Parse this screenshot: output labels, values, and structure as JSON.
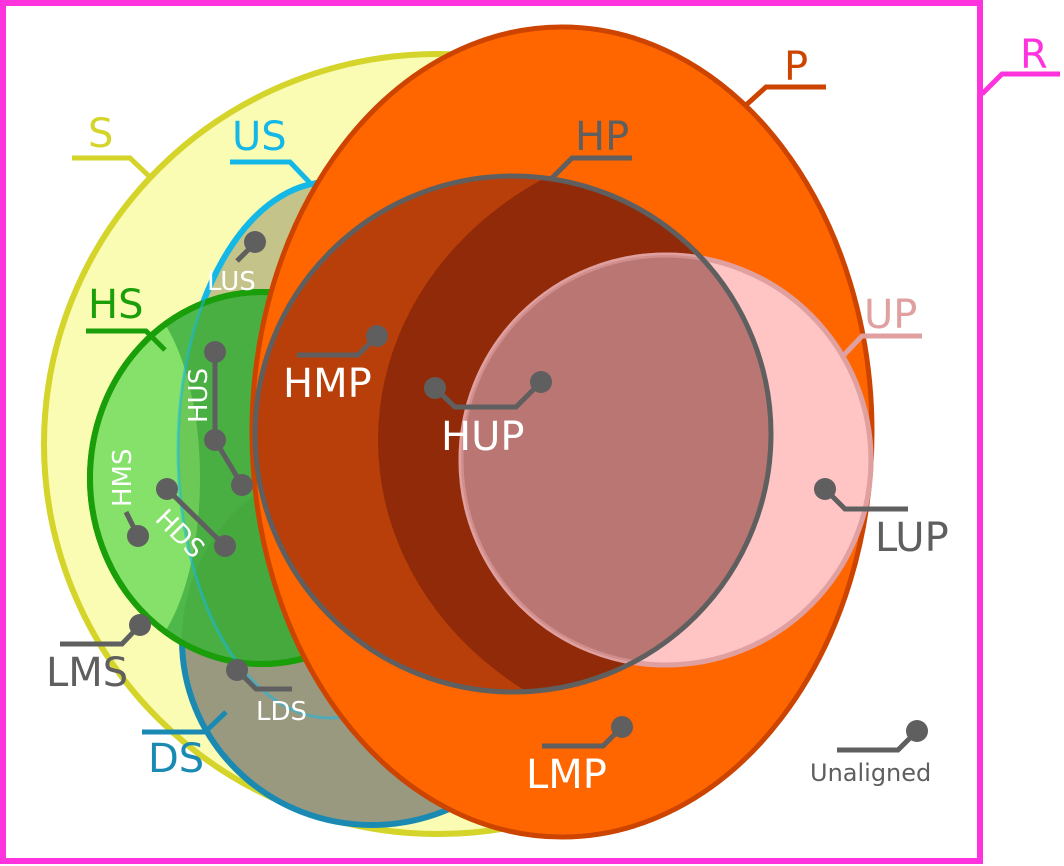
{
  "colors": {
    "region_R": "#ff33dd",
    "set_S": "#d4d42a",
    "set_S_fill": "#fafcb4",
    "set_US": "#14b8e6",
    "set_DS": "#1a8ab3",
    "set_HS": "#1a9e0a",
    "set_HS_fill": "#4fb84a",
    "set_P": "#cc4400",
    "set_P_fill": "#ff6600",
    "set_HP": "#5f5f5f",
    "set_UP": "#e0a0a0",
    "set_UP_fill": "#ffc4c4",
    "pointer": "#5f5f5f",
    "label_white": "#ffffff",
    "label_gray": "#5f5f5f"
  },
  "sets": {
    "R": "R",
    "S": "S",
    "US": "US",
    "DS": "DS",
    "HS": "HS",
    "P": "P",
    "HP": "HP",
    "UP": "UP"
  },
  "regions": {
    "LUS": "LUS",
    "HUS": "HUS",
    "HMS": "HMS",
    "HDS": "HDS",
    "LMS": "LMS",
    "LDS": "LDS",
    "HMP": "HMP",
    "HUP": "HUP",
    "LUP": "LUP",
    "LMP": "LMP",
    "unaligned": "Unaligned"
  }
}
